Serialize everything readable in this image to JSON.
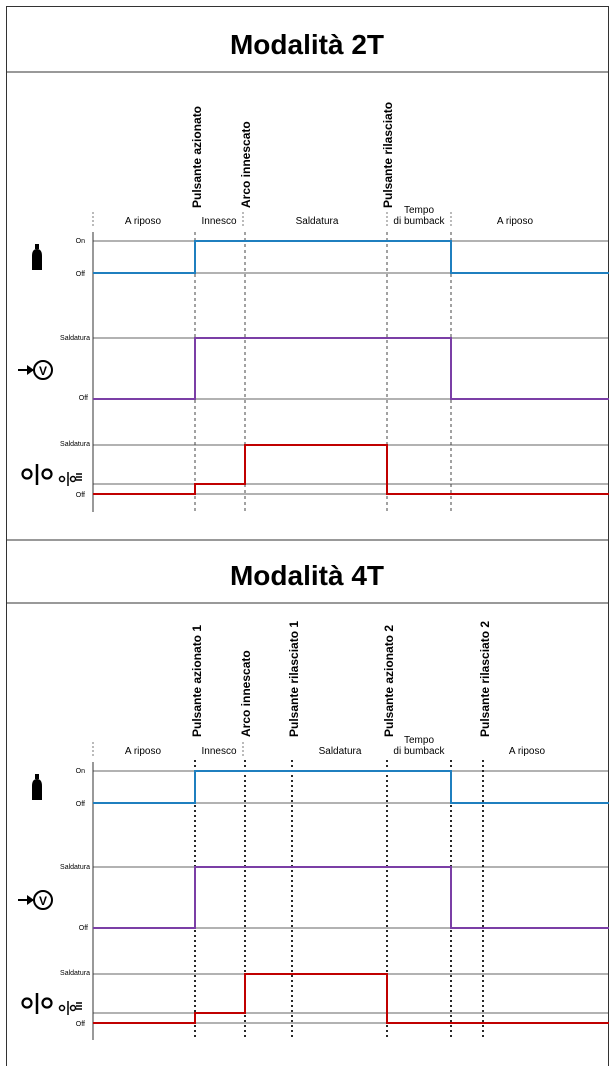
{
  "panels": [
    {
      "title": "Modalità 2T",
      "events": [
        "Pulsante azionato",
        "Arco innescato",
        "Pulsante rilasciato"
      ],
      "phases": [
        "A riposo",
        "Innesco",
        "Saldatura",
        "Tempo",
        "di bumback",
        "A riposo"
      ],
      "gas_levels": [
        "On",
        "Off"
      ],
      "voltage_levels": [
        "Saldatura",
        "Off"
      ],
      "current_levels": [
        "Saldatura",
        "Off"
      ]
    },
    {
      "title": "Modalità 4T",
      "events": [
        "Pulsante azionato 1",
        "Arco innescato",
        "Pulsante rilasciato 1",
        "Pulsante azionato 2",
        "Pulsante rilasciato 2"
      ],
      "phases": [
        "A riposo",
        "Innesco",
        "Saldatura",
        "Tempo",
        "di bumback",
        "A riposo"
      ],
      "gas_levels": [
        "On",
        "Off"
      ],
      "voltage_levels": [
        "Saldatura",
        "Off"
      ],
      "current_levels": [
        "Saldatura",
        "Off"
      ]
    }
  ],
  "icons": {
    "gas": "gas-cylinder-icon",
    "voltage": "voltage-arrow-icon",
    "current": "welding-current-icon"
  },
  "colors": {
    "gas": "#1f7fbf",
    "voltage": "#7b3fa6",
    "current": "#c00000"
  }
}
